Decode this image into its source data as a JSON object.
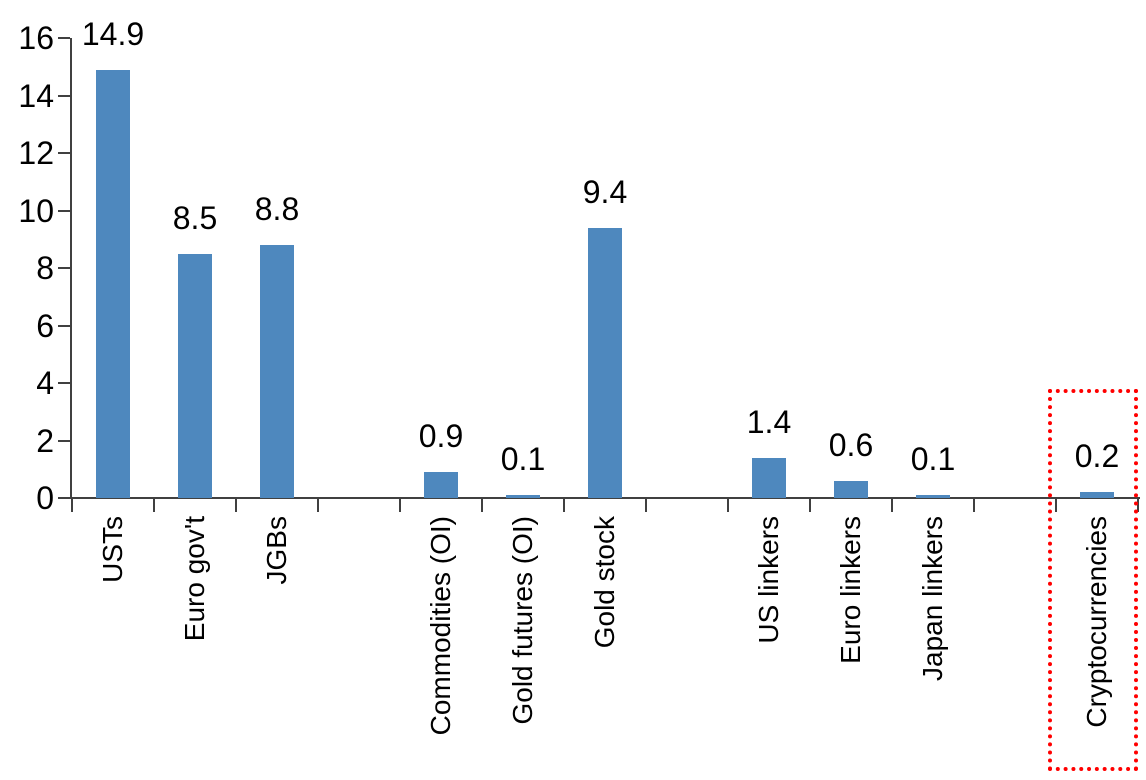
{
  "chart_data": {
    "type": "bar",
    "title": "",
    "categories": [
      "USTs",
      "Euro gov't",
      "JGBs",
      "Commodities (OI)",
      "Gold futures (OI)",
      "Gold stock",
      "US linkers",
      "Euro linkers",
      "Japan linkers",
      "Cryptocurrencies"
    ],
    "values": [
      14.9,
      8.5,
      8.8,
      0.9,
      0.1,
      9.4,
      1.4,
      0.6,
      0.1,
      0.2
    ],
    "value_labels": [
      "14.9",
      "8.5",
      "8.8",
      "0.9",
      "0.1",
      "9.4",
      "1.4",
      "0.6",
      "0.1",
      "0.2"
    ],
    "slot_indices": [
      0,
      1,
      2,
      4,
      5,
      6,
      8,
      9,
      10,
      12
    ],
    "total_slots": 13,
    "xlabel": "",
    "ylabel": "",
    "ylim": [
      0,
      16
    ],
    "ytick_step": 2,
    "ytick_labels": [
      "0",
      "2",
      "4",
      "6",
      "8",
      "10",
      "12",
      "14",
      "16"
    ],
    "grid": false,
    "legend": "none",
    "bar_color": "#4E88BE",
    "axis_color": "#404040",
    "label_color": "#000000",
    "highlight": {
      "category": "Cryptocurrencies",
      "box_color": "#FF0000",
      "box_style": "dotted"
    }
  }
}
